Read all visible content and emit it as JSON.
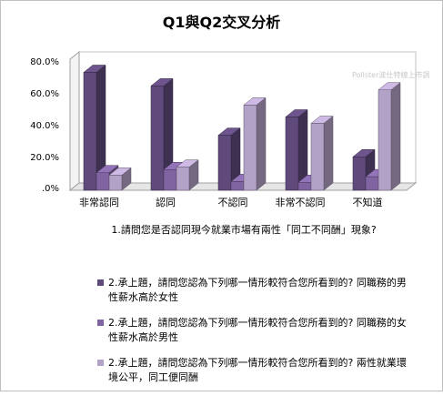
{
  "chart_data": {
    "type": "bar",
    "title": "Q1與Q2交叉分析",
    "watermark": "Pollster波仕特線上市調",
    "xlabel": "1.請問您是否認同現今就業市場有兩性「同工不同酬」現象?",
    "ylabel": "",
    "ylim": [
      0,
      80
    ],
    "yticks": [
      "80.0%",
      "60.0%",
      "40.0%",
      "20.0%",
      ".0%"
    ],
    "grid": false,
    "legend_position": "bottom",
    "categories": [
      "非常認同",
      "認同",
      "不認同",
      "非常不認同",
      "不知道"
    ],
    "series": [
      {
        "name": "2.承上題，請問您認為下列哪一情形較符合您所看到的? 同職務的男性薪水高於女性",
        "color": "#604a7b",
        "values": [
          74.0,
          65.5,
          34.5,
          46.0,
          21.0
        ]
      },
      {
        "name": "2.承上題，請問您認為下列哪一情形較符合您所看到的? 同職務的女性薪水高於男性",
        "color": "#8064a2",
        "values": [
          11.0,
          13.0,
          5.5,
          5.0,
          8.5
        ]
      },
      {
        "name": "2.承上題，請問您認為下列哪一情形較符合您所看到的? 兩性就業環境公平，同工便同酬",
        "color": "#b3a2c7",
        "values": [
          9.5,
          14.5,
          53.5,
          42.0,
          63.0
        ]
      }
    ]
  }
}
